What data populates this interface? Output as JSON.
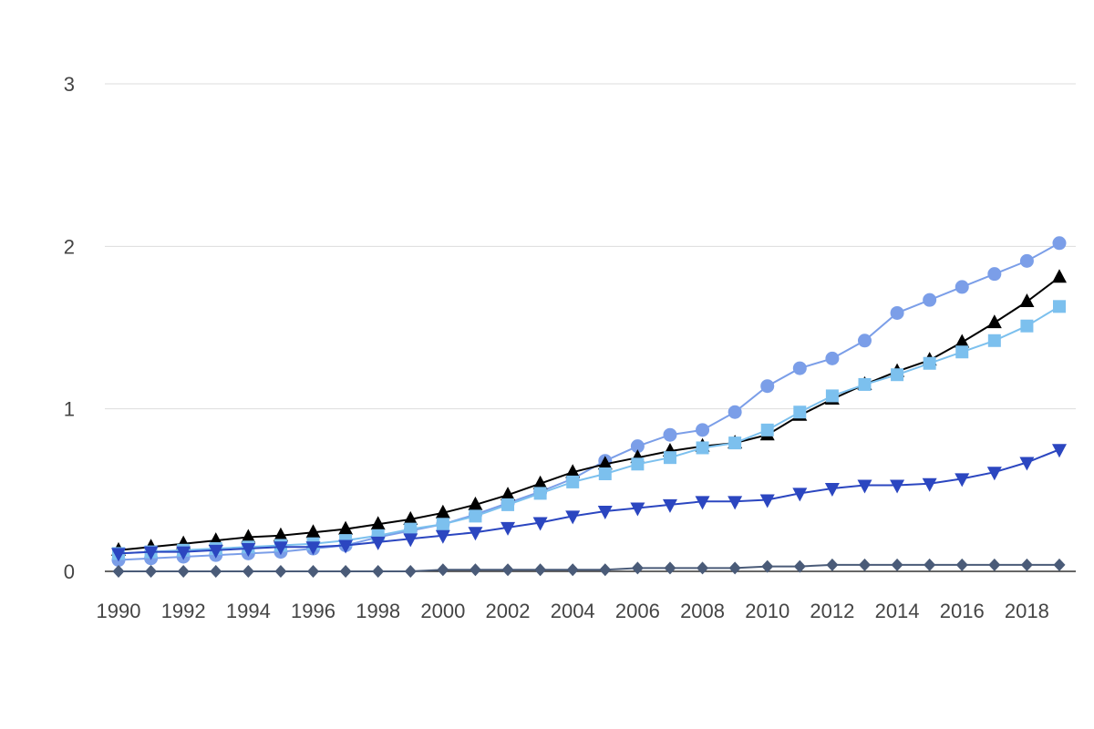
{
  "chart_data": {
    "type": "line",
    "title": "",
    "xlabel": "",
    "ylabel": "",
    "x": [
      1990,
      1991,
      1992,
      1993,
      1994,
      1995,
      1996,
      1997,
      1998,
      1999,
      2000,
      2001,
      2002,
      2003,
      2004,
      2005,
      2006,
      2007,
      2008,
      2009,
      2010,
      2011,
      2012,
      2013,
      2014,
      2015,
      2016,
      2017,
      2018,
      2019
    ],
    "xlim": [
      1990,
      2019
    ],
    "ylim": [
      0,
      3
    ],
    "x_ticks": [
      1990,
      1992,
      1994,
      1996,
      1998,
      2000,
      2002,
      2004,
      2006,
      2008,
      2010,
      2012,
      2014,
      2016,
      2018
    ],
    "y_ticks": [
      0,
      1,
      2,
      3
    ],
    "x_tick_labels": [
      "1990",
      "1992",
      "1994",
      "1996",
      "1998",
      "2000",
      "2002",
      "2004",
      "2006",
      "2008",
      "2010",
      "2012",
      "2014",
      "2016",
      "2018"
    ],
    "y_tick_labels": [
      "0",
      "1",
      "2",
      "3"
    ],
    "grid": true,
    "legend": "none",
    "series": [
      {
        "marker": "circle",
        "color": "#7B9EE8",
        "values": [
          0.07,
          0.08,
          0.09,
          0.1,
          0.11,
          0.12,
          0.14,
          0.16,
          0.21,
          0.25,
          0.29,
          0.35,
          0.42,
          0.49,
          0.57,
          0.68,
          0.77,
          0.84,
          0.87,
          0.98,
          1.14,
          1.25,
          1.31,
          1.42,
          1.59,
          1.67,
          1.75,
          1.83,
          1.91,
          2.02
        ]
      },
      {
        "marker": "triangle-up",
        "color": "#000000",
        "values": [
          0.13,
          0.15,
          0.17,
          0.19,
          0.21,
          0.22,
          0.24,
          0.26,
          0.29,
          0.32,
          0.36,
          0.41,
          0.47,
          0.54,
          0.61,
          0.66,
          0.7,
          0.74,
          0.77,
          0.79,
          0.84,
          0.96,
          1.06,
          1.15,
          1.23,
          1.3,
          1.41,
          1.53,
          1.66,
          1.81
        ]
      },
      {
        "marker": "square",
        "color": "#7CC0EE",
        "values": [
          0.11,
          0.12,
          0.13,
          0.14,
          0.15,
          0.16,
          0.17,
          0.19,
          0.22,
          0.26,
          0.29,
          0.34,
          0.41,
          0.48,
          0.55,
          0.6,
          0.66,
          0.7,
          0.76,
          0.79,
          0.87,
          0.98,
          1.08,
          1.15,
          1.21,
          1.28,
          1.35,
          1.42,
          1.51,
          1.63
        ]
      },
      {
        "marker": "triangle-down",
        "color": "#2B46C0",
        "values": [
          0.11,
          0.12,
          0.12,
          0.13,
          0.14,
          0.15,
          0.15,
          0.16,
          0.18,
          0.2,
          0.22,
          0.24,
          0.27,
          0.3,
          0.34,
          0.37,
          0.39,
          0.41,
          0.43,
          0.43,
          0.44,
          0.48,
          0.51,
          0.53,
          0.53,
          0.54,
          0.57,
          0.61,
          0.67,
          0.75
        ]
      },
      {
        "marker": "diamond",
        "color": "#4A5B78",
        "values": [
          0.0,
          0.0,
          0.0,
          0.0,
          0.0,
          0.0,
          0.0,
          0.0,
          0.0,
          0.0,
          0.01,
          0.01,
          0.01,
          0.01,
          0.01,
          0.01,
          0.02,
          0.02,
          0.02,
          0.02,
          0.03,
          0.03,
          0.04,
          0.04,
          0.04,
          0.04,
          0.04,
          0.04,
          0.04,
          0.04
        ]
      }
    ]
  }
}
